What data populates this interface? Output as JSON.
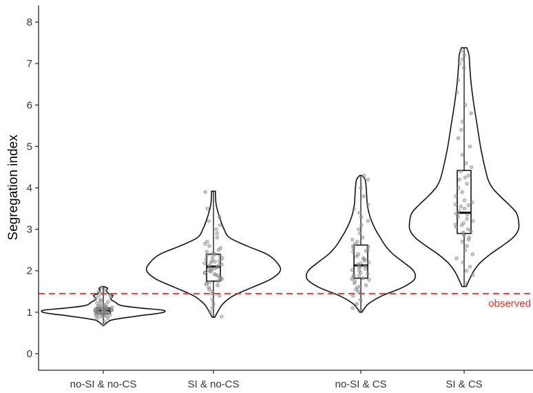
{
  "chart_data": {
    "type": "violin",
    "title": "",
    "xlabel": "",
    "ylabel": "Segregation index",
    "ylim": [
      -0.4,
      8.4
    ],
    "yticks": [
      0,
      1,
      2,
      3,
      4,
      5,
      6,
      7,
      8
    ],
    "grid": false,
    "categories": [
      "no-SI & no-CS",
      "SI & no-CS",
      "no-SI & CS",
      "SI & CS"
    ],
    "reference_line": {
      "y": 1.45,
      "label": "observed",
      "color": "#e8312a",
      "style": "dashed"
    },
    "series": [
      {
        "category": "no-SI & no-CS",
        "min": 0.68,
        "q1": 0.97,
        "median": 1.04,
        "q3": 1.1,
        "max": 1.62,
        "violin_profile": [
          [
            0.68,
            0.01
          ],
          [
            0.75,
            0.06
          ],
          [
            0.82,
            0.16
          ],
          [
            0.9,
            0.52
          ],
          [
            0.96,
            0.85
          ],
          [
            1.0,
            1.0
          ],
          [
            1.05,
            0.98
          ],
          [
            1.1,
            0.62
          ],
          [
            1.16,
            0.3
          ],
          [
            1.24,
            0.2
          ],
          [
            1.32,
            0.12
          ],
          [
            1.4,
            0.16
          ],
          [
            1.45,
            0.09
          ],
          [
            1.52,
            0.05
          ],
          [
            1.58,
            0.07
          ],
          [
            1.62,
            0.01
          ]
        ],
        "points": [
          0.7,
          0.78,
          0.84,
          0.88,
          0.9,
          0.92,
          0.93,
          0.94,
          0.95,
          0.96,
          0.97,
          0.98,
          0.99,
          1.0,
          1.0,
          1.01,
          1.02,
          1.02,
          1.03,
          1.03,
          1.04,
          1.04,
          1.05,
          1.05,
          1.06,
          1.06,
          1.07,
          1.08,
          1.08,
          1.09,
          1.1,
          1.1,
          1.11,
          1.12,
          1.13,
          1.15,
          1.17,
          1.2,
          1.22,
          1.25,
          1.28,
          1.3,
          1.33,
          1.36,
          1.4,
          1.42,
          1.45,
          1.5,
          1.55,
          1.6,
          0.86,
          0.91,
          0.95,
          0.99,
          1.01,
          1.04,
          1.07,
          1.09,
          1.12,
          1.18
        ]
      },
      {
        "category": "SI & no-CS",
        "min": 0.88,
        "q1": 1.75,
        "median": 2.1,
        "q3": 2.4,
        "max": 3.92,
        "violin_profile": [
          [
            0.88,
            0.02
          ],
          [
            1.0,
            0.06
          ],
          [
            1.2,
            0.14
          ],
          [
            1.4,
            0.3
          ],
          [
            1.6,
            0.58
          ],
          [
            1.8,
            0.86
          ],
          [
            2.0,
            1.0
          ],
          [
            2.2,
            0.95
          ],
          [
            2.4,
            0.8
          ],
          [
            2.6,
            0.5
          ],
          [
            2.8,
            0.24
          ],
          [
            3.0,
            0.16
          ],
          [
            3.2,
            0.11
          ],
          [
            3.4,
            0.07
          ],
          [
            3.6,
            0.04
          ],
          [
            3.8,
            0.03
          ],
          [
            3.92,
            0.03
          ]
        ],
        "points": [
          0.9,
          1.0,
          1.1,
          1.2,
          1.3,
          1.4,
          1.45,
          1.5,
          1.55,
          1.6,
          1.65,
          1.7,
          1.72,
          1.75,
          1.78,
          1.8,
          1.82,
          1.85,
          1.88,
          1.9,
          1.92,
          1.95,
          1.98,
          2.0,
          2.02,
          2.05,
          2.08,
          2.1,
          2.12,
          2.15,
          2.18,
          2.2,
          2.22,
          2.25,
          2.28,
          2.3,
          2.33,
          2.36,
          2.4,
          2.43,
          2.46,
          2.5,
          2.55,
          2.6,
          2.65,
          2.7,
          2.8,
          2.9,
          3.0,
          3.1,
          3.2,
          3.3,
          3.5,
          3.9,
          1.68,
          1.95,
          2.05,
          2.14,
          2.24,
          2.38
        ]
      },
      {
        "category": "no-SI & CS",
        "min": 1.0,
        "q1": 1.82,
        "median": 2.13,
        "q3": 2.62,
        "max": 4.3,
        "violin_profile": [
          [
            1.0,
            0.02
          ],
          [
            1.2,
            0.14
          ],
          [
            1.4,
            0.4
          ],
          [
            1.6,
            0.78
          ],
          [
            1.8,
            1.0
          ],
          [
            2.0,
            0.98
          ],
          [
            2.2,
            0.8
          ],
          [
            2.4,
            0.6
          ],
          [
            2.6,
            0.46
          ],
          [
            2.8,
            0.36
          ],
          [
            3.0,
            0.27
          ],
          [
            3.2,
            0.2
          ],
          [
            3.4,
            0.15
          ],
          [
            3.6,
            0.12
          ],
          [
            3.8,
            0.11
          ],
          [
            4.0,
            0.1
          ],
          [
            4.2,
            0.08
          ],
          [
            4.3,
            0.02
          ]
        ],
        "points": [
          1.05,
          1.1,
          1.2,
          1.3,
          1.4,
          1.5,
          1.55,
          1.6,
          1.65,
          1.7,
          1.75,
          1.8,
          1.82,
          1.85,
          1.88,
          1.9,
          1.95,
          2.0,
          2.02,
          2.05,
          2.1,
          2.12,
          2.15,
          2.2,
          2.25,
          2.3,
          2.35,
          2.4,
          2.45,
          2.5,
          2.55,
          2.6,
          2.65,
          2.7,
          2.75,
          2.8,
          2.9,
          3.0,
          3.1,
          3.2,
          3.3,
          3.4,
          3.5,
          3.6,
          3.8,
          4.0,
          4.2,
          4.3,
          1.62,
          1.78,
          1.92,
          2.08,
          2.18,
          2.28,
          2.48,
          2.58
        ]
      },
      {
        "category": "SI & CS",
        "min": 1.62,
        "q1": 2.9,
        "median": 3.4,
        "q3": 4.42,
        "max": 7.38,
        "violin_profile": [
          [
            1.62,
            0.04
          ],
          [
            1.8,
            0.1
          ],
          [
            2.0,
            0.18
          ],
          [
            2.2,
            0.3
          ],
          [
            2.4,
            0.48
          ],
          [
            2.6,
            0.7
          ],
          [
            2.8,
            0.9
          ],
          [
            3.0,
            1.0
          ],
          [
            3.2,
            1.0
          ],
          [
            3.4,
            0.96
          ],
          [
            3.6,
            0.82
          ],
          [
            3.8,
            0.66
          ],
          [
            4.0,
            0.52
          ],
          [
            4.2,
            0.44
          ],
          [
            4.5,
            0.38
          ],
          [
            4.8,
            0.33
          ],
          [
            5.0,
            0.3
          ],
          [
            5.5,
            0.24
          ],
          [
            6.0,
            0.18
          ],
          [
            6.5,
            0.13
          ],
          [
            7.0,
            0.1
          ],
          [
            7.2,
            0.09
          ],
          [
            7.38,
            0.05
          ]
        ],
        "points": [
          1.7,
          1.9,
          2.0,
          2.1,
          2.2,
          2.3,
          2.4,
          2.5,
          2.6,
          2.7,
          2.75,
          2.8,
          2.85,
          2.9,
          2.95,
          3.0,
          3.05,
          3.1,
          3.15,
          3.2,
          3.25,
          3.3,
          3.35,
          3.4,
          3.45,
          3.5,
          3.55,
          3.6,
          3.65,
          3.7,
          3.8,
          3.9,
          4.0,
          4.1,
          4.2,
          4.3,
          4.4,
          4.5,
          4.6,
          4.8,
          5.0,
          5.2,
          5.4,
          5.6,
          5.8,
          6.0,
          6.3,
          6.6,
          6.9,
          7.0,
          7.1,
          7.2,
          7.3,
          3.12,
          3.38,
          3.58,
          2.92,
          4.25
        ]
      }
    ],
    "colors": {
      "violin_stroke": "#111111",
      "box_stroke": "#111111",
      "point_fill": "#9e9e9e",
      "point_stroke": "#555555",
      "axis": "#222222",
      "reference": "#e8312a"
    }
  }
}
